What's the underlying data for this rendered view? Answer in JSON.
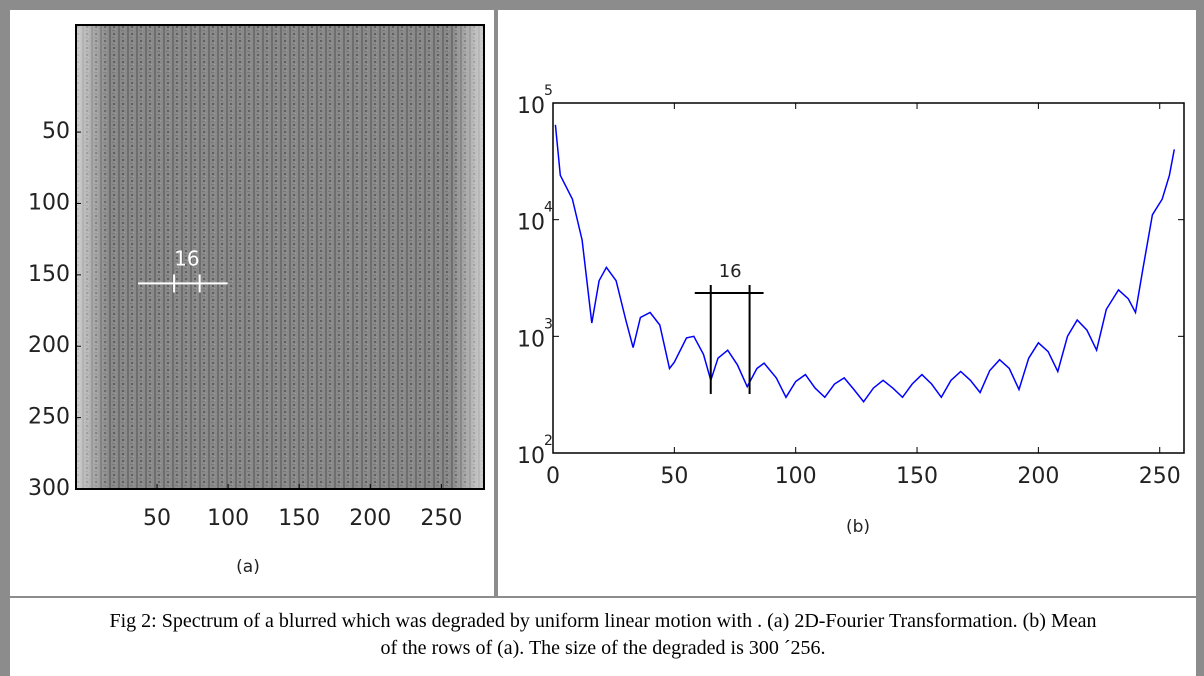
{
  "caption": "Fig 2: Spectrum of a blurred which was degraded by uniform linear motion with . (a) 2D-Fourier Transformation. (b) Mean of the rows of (a). The size of the degraded is 300 ´256.",
  "chart_data": [
    {
      "type": "image",
      "subtitle": "(a)",
      "xlim": [
        -7,
        280
      ],
      "ylim": [
        -25,
        300
      ],
      "xticks": [
        50,
        100,
        150,
        200,
        250
      ],
      "yticks": [
        50,
        100,
        150,
        200,
        250,
        300
      ],
      "annotation": {
        "text": "16",
        "x": [
          62,
          80
        ],
        "y": 156
      }
    },
    {
      "type": "line",
      "subtitle": "(b)",
      "log_y": true,
      "color": "#0000ff",
      "x": [
        1,
        3,
        8,
        12,
        16,
        19,
        22,
        26,
        30,
        33,
        36,
        40,
        44,
        48,
        50,
        55,
        58,
        62,
        65,
        68,
        72,
        76,
        80,
        84,
        87,
        92,
        96,
        100,
        104,
        108,
        112,
        116,
        120,
        124,
        128,
        132,
        136,
        140,
        144,
        148,
        152,
        156,
        160,
        164,
        168,
        172,
        176,
        180,
        184,
        188,
        192,
        196,
        200,
        204,
        208,
        212,
        216,
        220,
        224,
        228,
        233,
        237,
        240,
        243,
        247,
        251,
        254,
        256
      ],
      "values": [
        65000,
        24000,
        15000,
        6700,
        1300,
        3000,
        3900,
        3000,
        1380,
        800,
        1450,
        1600,
        1250,
        530,
        600,
        970,
        1000,
        700,
        420,
        650,
        760,
        570,
        370,
        530,
        590,
        440,
        300,
        410,
        470,
        360,
        300,
        390,
        440,
        350,
        275,
        360,
        420,
        360,
        300,
        390,
        470,
        390,
        300,
        420,
        500,
        420,
        330,
        510,
        630,
        530,
        350,
        650,
        880,
        740,
        500,
        1000,
        1380,
        1130,
        760,
        1700,
        2500,
        2100,
        1600,
        3700,
        11000,
        15000,
        24000,
        40000
      ],
      "xlim": [
        0,
        260
      ],
      "ylim": [
        100,
        100000
      ],
      "xticks": [
        0,
        50,
        100,
        150,
        200,
        250
      ],
      "yticks": [
        {
          "value": 100,
          "label": "10",
          "sup": "2"
        },
        {
          "value": 1000,
          "label": "10",
          "sup": "3"
        },
        {
          "value": 10000,
          "label": "10",
          "sup": "4"
        },
        {
          "value": 100000,
          "label": "10",
          "sup": "5"
        }
      ],
      "annotation": {
        "text": "16",
        "x": [
          65,
          81
        ]
      }
    }
  ]
}
